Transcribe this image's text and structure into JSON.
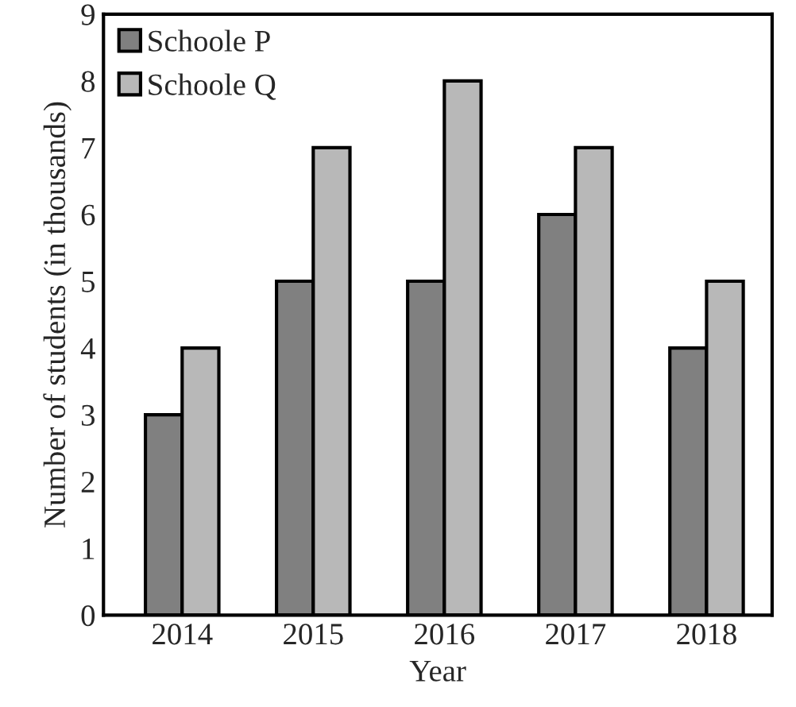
{
  "chart_data": {
    "type": "bar",
    "xlabel": "Year",
    "ylabel": "Number of students (in thousands)",
    "categories": [
      "2014",
      "2015",
      "2016",
      "2017",
      "2018"
    ],
    "series": [
      {
        "name": "Schoole P",
        "color": "#808080",
        "values": [
          3,
          5,
          5,
          6,
          4
        ]
      },
      {
        "name": "Schoole Q",
        "color": "#b8b8b8",
        "values": [
          4,
          7,
          8,
          7,
          5
        ]
      }
    ],
    "ylim": [
      0,
      9
    ],
    "yticks": [
      0,
      1,
      2,
      3,
      4,
      5,
      6,
      7,
      8,
      9
    ],
    "grid": false,
    "legend": "top left"
  }
}
